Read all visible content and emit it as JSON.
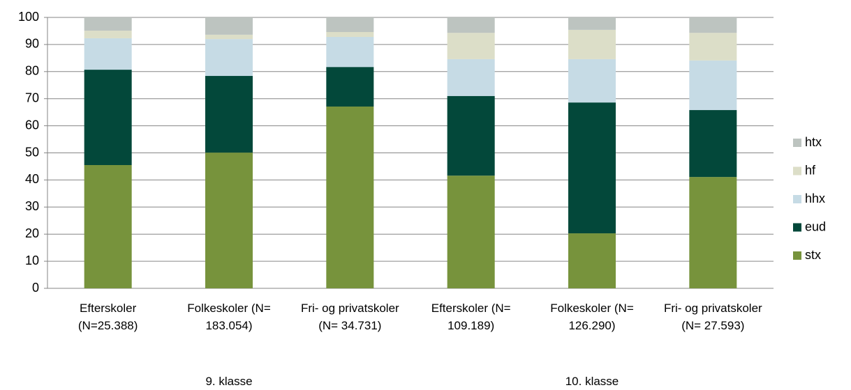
{
  "chart_data": {
    "type": "stacked_bar",
    "categories": [
      "Efterskoler (N=25.388)",
      "Folkeskoler (N= 183.054)",
      "Fri- og privatskoler (N= 34.731)",
      "Efterskoler (N= 109.189)",
      "Folkeskoler (N= 126.290)",
      "Fri- og privatskoler (N= 27.593)"
    ],
    "groups": [
      {
        "label": "9. klasse",
        "size": 3
      },
      {
        "label": "10. klasse",
        "size": 3
      }
    ],
    "series": [
      {
        "name": "stx",
        "color": "#77933c",
        "values": [
          45.5,
          50.1,
          67.1,
          41.6,
          20.3,
          41.1
        ]
      },
      {
        "name": "eud",
        "color": "#03483a",
        "values": [
          35.2,
          28.3,
          14.6,
          29.4,
          48.3,
          24.7
        ]
      },
      {
        "name": "hhx",
        "color": "#c6dbe5",
        "values": [
          11.6,
          13.6,
          11.1,
          13.6,
          16.0,
          18.3
        ]
      },
      {
        "name": "hf",
        "color": "#dcdec8",
        "values": [
          2.8,
          1.6,
          1.8,
          9.7,
          10.8,
          10.2
        ]
      },
      {
        "name": "htx",
        "color": "#bdc4c0",
        "values": [
          4.9,
          6.4,
          5.4,
          5.7,
          4.6,
          5.7
        ]
      }
    ],
    "ylim": [
      0,
      100
    ],
    "yticks": [
      0,
      10,
      20,
      30,
      40,
      50,
      60,
      70,
      80,
      90,
      100
    ],
    "grid": true,
    "legend": "right"
  }
}
